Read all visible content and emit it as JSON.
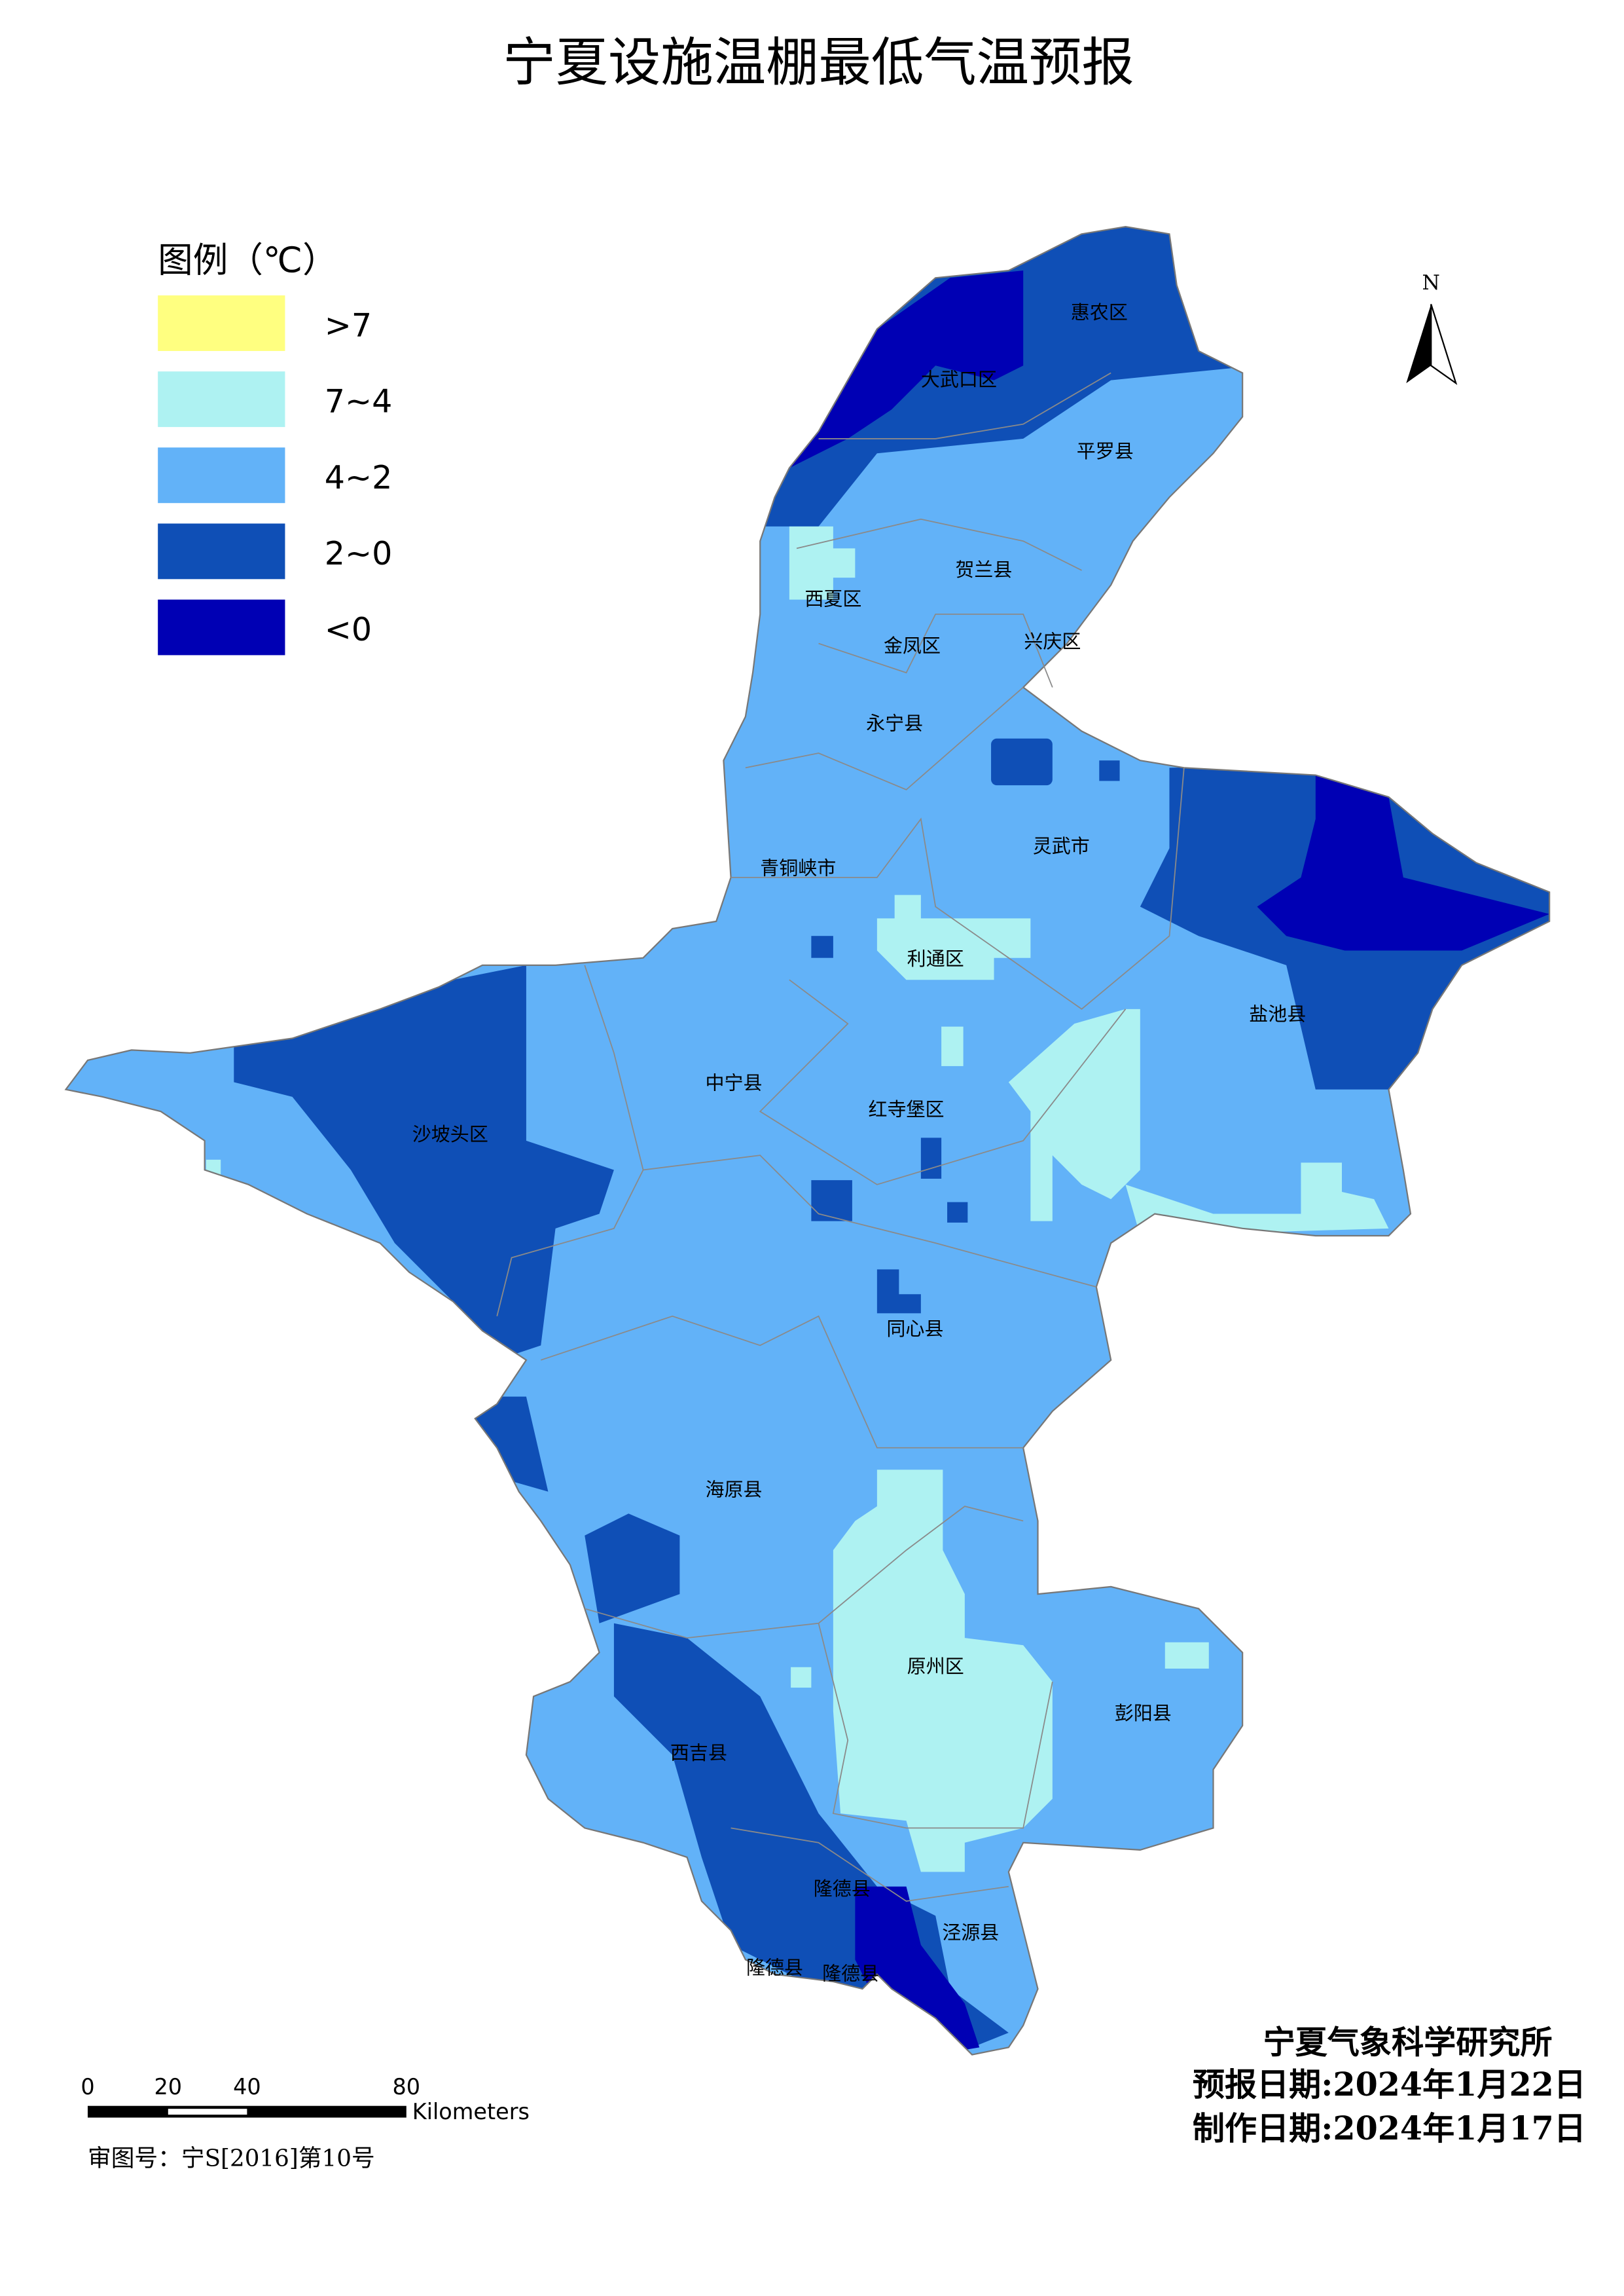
{
  "title": "宁夏设施温棚最低气温预报",
  "legend": {
    "title": "图例（℃）",
    "items": [
      {
        "label": ">7",
        "color": "#ffff80"
      },
      {
        "label": "7~4",
        "color": "#aef2f2"
      },
      {
        "label": "4~2",
        "color": "#62b2f8"
      },
      {
        "label": "2~0",
        "color": "#0f4fb6"
      },
      {
        "label": "<0",
        "color": "#0000b4"
      }
    ]
  },
  "north": "N",
  "districts": [
    "惠农区",
    "大武口区",
    "平罗县",
    "贺兰县",
    "西夏区",
    "金凤区",
    "兴庆区",
    "永宁县",
    "灵武市",
    "青铜峡市",
    "利通区",
    "盐池县",
    "中宁县",
    "红寺堡区",
    "沙坡头区",
    "同心县",
    "海原县",
    "原州区",
    "彭阳县",
    "西吉县",
    "隆德县",
    "泾源县",
    "隆德县",
    "隆德县"
  ],
  "scale_bar": {
    "labels": [
      "0",
      "20",
      "40",
      "80"
    ],
    "unit": "Kilometers"
  },
  "approval": "审图号：宁S[2016]第10号",
  "institute": "宁夏气象科学研究所",
  "forecast_date": "预报日期:2024年1月22日",
  "production_date": "制作日期:2024年1月17日"
}
